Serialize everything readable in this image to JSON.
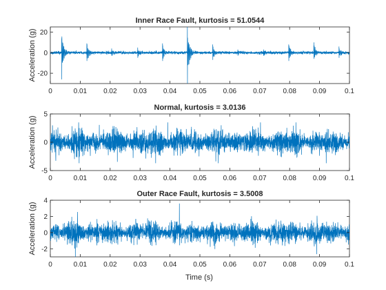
{
  "figure": {
    "xlabel": "Time (s)"
  },
  "chart_data": [
    {
      "type": "line",
      "title": "Inner Race Fault, kurtosis = 51.0544",
      "ylabel": "Acceleration (g)",
      "xlim": [
        0,
        0.1
      ],
      "ylim": [
        -30,
        25
      ],
      "xticks": [
        0,
        0.01,
        0.02,
        0.03,
        0.04,
        0.05,
        0.06,
        0.07,
        0.08,
        0.09,
        0.1
      ],
      "xticklabels": [
        "0",
        "0.01",
        "0.02",
        "0.03",
        "0.04",
        "0.05",
        "0.06",
        "0.07",
        "0.08",
        "0.09",
        "0.1"
      ],
      "yticks": [
        -20,
        0,
        20
      ],
      "yticklabels": [
        "-20",
        "0",
        "20"
      ],
      "color": "#0072bd",
      "signal": {
        "baseline_amplitude": 1.2,
        "impulses": [
          {
            "t": 0.0038,
            "max": 14,
            "min": -26
          },
          {
            "t": 0.0122,
            "max": 9,
            "min": -8
          },
          {
            "t": 0.0205,
            "max": 4,
            "min": -3
          },
          {
            "t": 0.0292,
            "max": 5,
            "min": -5
          },
          {
            "t": 0.0375,
            "max": 9,
            "min": -8
          },
          {
            "t": 0.0458,
            "max": 25,
            "min": -30
          },
          {
            "t": 0.0543,
            "max": 8,
            "min": -7
          },
          {
            "t": 0.0627,
            "max": 3,
            "min": -3
          },
          {
            "t": 0.0713,
            "max": 3,
            "min": -3
          },
          {
            "t": 0.0797,
            "max": 8,
            "min": -8
          },
          {
            "t": 0.0881,
            "max": 10,
            "min": -6
          },
          {
            "t": 0.0965,
            "max": 6,
            "min": -5
          }
        ]
      }
    },
    {
      "type": "line",
      "title": "Normal, kurtosis = 3.0136",
      "ylabel": "Acceleration (g)",
      "xlim": [
        0,
        0.1
      ],
      "ylim": [
        -5,
        5
      ],
      "xticks": [
        0,
        0.01,
        0.02,
        0.03,
        0.04,
        0.05,
        0.06,
        0.07,
        0.08,
        0.09,
        0.1
      ],
      "xticklabels": [
        "0",
        "0.01",
        "0.02",
        "0.03",
        "0.04",
        "0.05",
        "0.06",
        "0.07",
        "0.08",
        "0.09",
        "0.1"
      ],
      "yticks": [
        -5,
        0,
        5
      ],
      "yticklabels": [
        "-5",
        "0",
        "5"
      ],
      "color": "#0072bd",
      "signal": {
        "baseline_amplitude": 1.25,
        "peak_max": 3.5,
        "peak_min": -3.7
      }
    },
    {
      "type": "line",
      "title": "Outer Race Fault, kurtosis = 3.5008",
      "ylabel": "Acceleration (g)",
      "xlim": [
        0,
        0.1
      ],
      "ylim": [
        -3,
        4
      ],
      "xticks": [
        0,
        0.01,
        0.02,
        0.03,
        0.04,
        0.05,
        0.06,
        0.07,
        0.08,
        0.09,
        0.1
      ],
      "xticklabels": [
        "0",
        "0.01",
        "0.02",
        "0.03",
        "0.04",
        "0.05",
        "0.06",
        "0.07",
        "0.08",
        "0.09",
        "0.1"
      ],
      "yticks": [
        -2,
        0,
        2,
        4
      ],
      "yticklabels": [
        "-2",
        "0",
        "2",
        "4"
      ],
      "color": "#0072bd",
      "signal": {
        "baseline_amplitude": 0.75,
        "peak_max": 3.6,
        "peak_min": -3.0
      }
    }
  ]
}
